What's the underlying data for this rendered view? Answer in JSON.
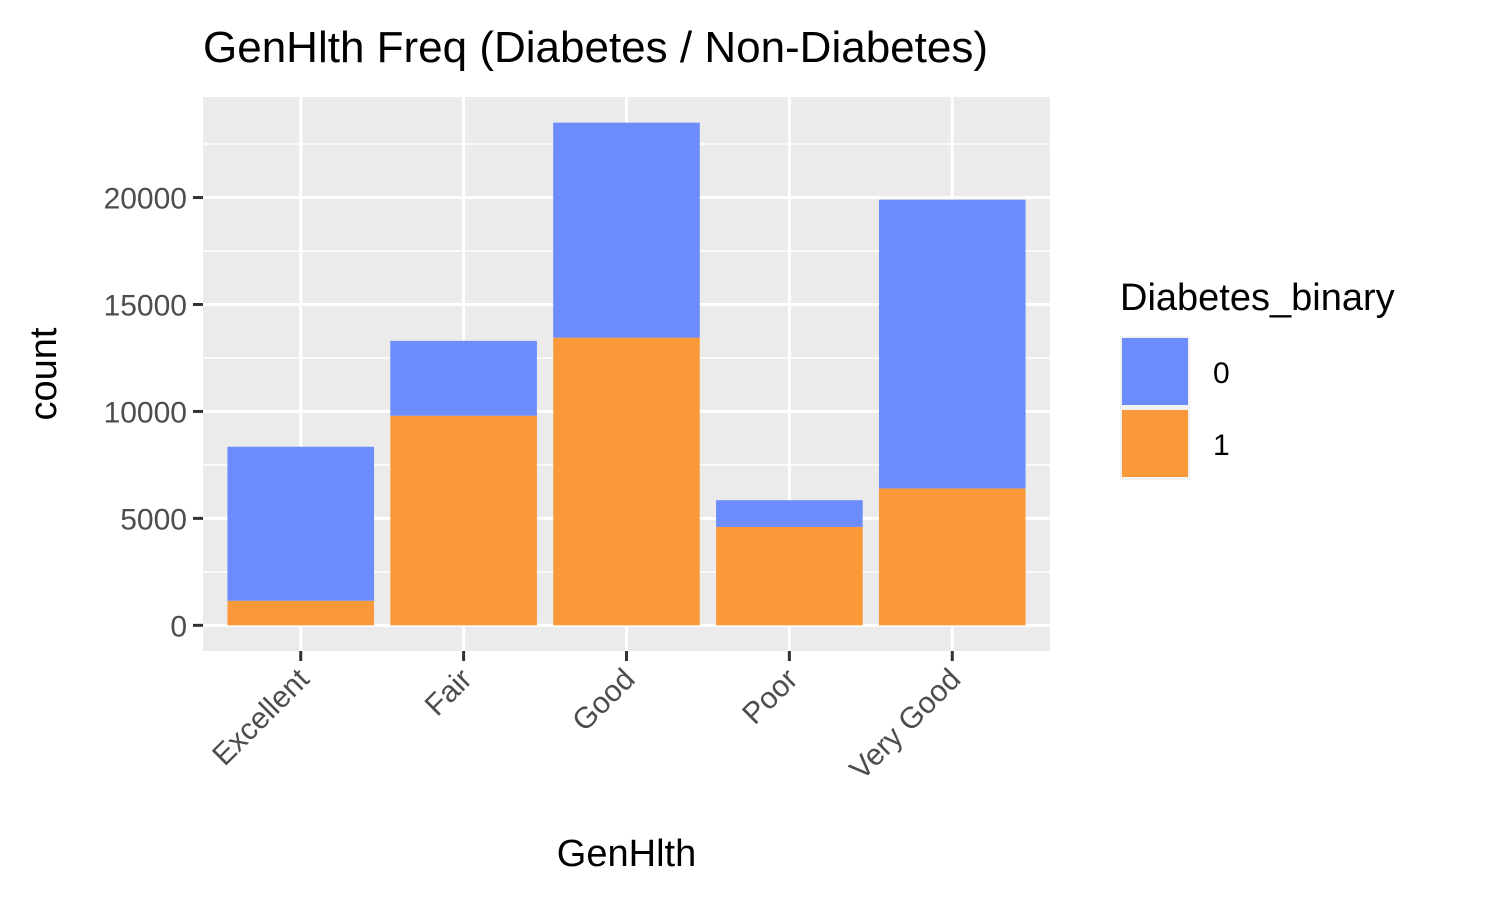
{
  "chart_data": {
    "type": "bar",
    "stacked": true,
    "title": "GenHlth Freq (Diabetes / Non-Diabetes)",
    "xlabel": "GenHlth",
    "ylabel": "count",
    "categories": [
      "Excellent",
      "Fair",
      "Good",
      "Poor",
      "Very Good"
    ],
    "series": [
      {
        "name": "0",
        "color": "#6b8cfa",
        "values": [
          7200,
          3500,
          10050,
          1250,
          13500
        ]
      },
      {
        "name": "1",
        "color": "#fa993a",
        "values": [
          1150,
          9800,
          13450,
          4600,
          6400
        ]
      }
    ],
    "ylim": [
      -1200,
      24700
    ],
    "yticks": [
      0,
      5000,
      10000,
      15000,
      20000
    ],
    "ytick_labels": [
      "0",
      "5000",
      "10000",
      "15000",
      "20000"
    ],
    "grid": true,
    "legend": {
      "title": "Diabetes_binary",
      "position": "right"
    }
  }
}
